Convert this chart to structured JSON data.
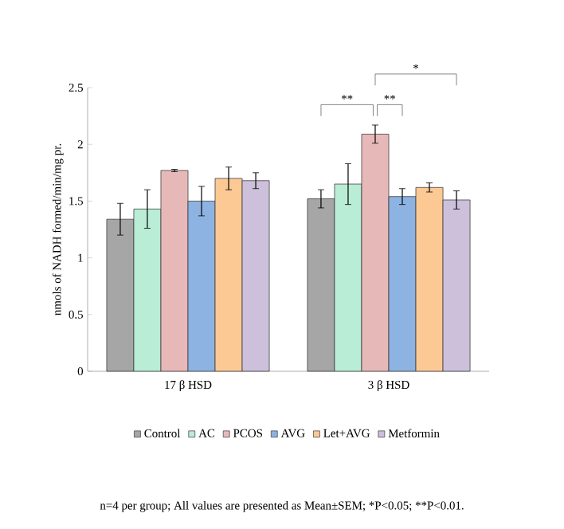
{
  "chart_data": {
    "type": "bar",
    "ylabel": "nmols of NADH formed/min/mg pr.",
    "categories": [
      "17 β HSD",
      "3 β HSD"
    ],
    "series": [
      {
        "name": "Control",
        "color": "#a6a6a6",
        "values": [
          1.34,
          1.52
        ],
        "errors": [
          0.14,
          0.08
        ]
      },
      {
        "name": "AC",
        "color": "#b9edd5",
        "values": [
          1.43,
          1.65
        ],
        "errors": [
          0.17,
          0.18
        ]
      },
      {
        "name": "PCOS",
        "color": "#e6b9b8",
        "values": [
          1.77,
          2.09
        ],
        "errors": [
          0.01,
          0.08
        ]
      },
      {
        "name": "AVG",
        "color": "#8db3e2",
        "values": [
          1.5,
          1.54
        ],
        "errors": [
          0.13,
          0.07
        ]
      },
      {
        "name": "Let+AVG",
        "color": "#fcc994",
        "values": [
          1.7,
          1.62
        ],
        "errors": [
          0.1,
          0.04
        ]
      },
      {
        "name": "Metformin",
        "color": "#ccc0da",
        "values": [
          1.68,
          1.51
        ],
        "errors": [
          0.07,
          0.08
        ]
      }
    ],
    "ylim": [
      0,
      2.5
    ],
    "yticks": [
      0,
      0.5,
      1,
      1.5,
      2,
      2.5
    ],
    "legend": "bottom",
    "annotations": [
      "**",
      "**",
      "*",
      "n=4 per group; All values are presented as Mean±SEM; *P<0.05; **P<0.01."
    ]
  }
}
